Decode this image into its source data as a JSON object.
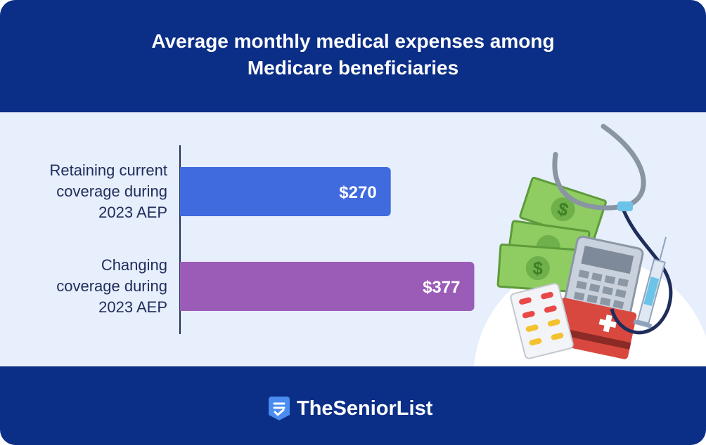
{
  "chart_data": {
    "type": "bar",
    "orientation": "horizontal",
    "title": "Average monthly medical expenses among Medicare beneficiaries",
    "categories": [
      "Retaining current\ncoverage during\n2023 AEP",
      "Changing\ncoverage during\n2023 AEP"
    ],
    "values": [
      270,
      377
    ],
    "value_labels": [
      "$270",
      "$377"
    ],
    "colors": [
      "#3f6bde",
      "#9b5cb8"
    ]
  },
  "footer": {
    "brand": "TheSeniorList"
  }
}
